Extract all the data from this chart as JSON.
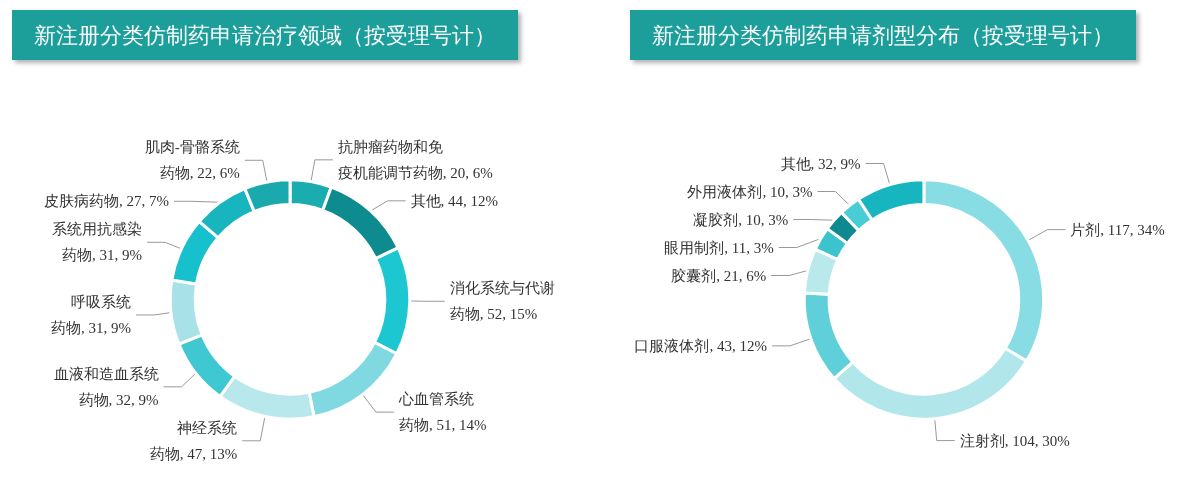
{
  "chart_data": [
    {
      "type": "donut",
      "title": "新注册分类仿制药申请治疗领域（按受理号计）",
      "categories": [
        "抗肿瘤药物和免疫机能调节药物",
        "其他",
        "消化系统与代谢药物",
        "心血管系统药物",
        "神经系统药物",
        "血液和造血系统药物",
        "呼吸系统药物",
        "系统用抗感染药物",
        "皮肤病药物",
        "肌肉-骨骼系统药物"
      ],
      "values": [
        20,
        44,
        52,
        51,
        47,
        32,
        31,
        31,
        27,
        22
      ],
      "value_labels": [
        "20, 6%",
        "44, 12%",
        "52, 15%",
        "51, 14%",
        "47, 13%",
        "32, 9%",
        "31, 9%",
        "31, 9%",
        "27, 7%",
        "22, 6%"
      ],
      "colors": [
        "#19adb0",
        "#0e8b8f",
        "#1cc7d1",
        "#80d9e1",
        "#b8e8eb",
        "#3fc8d2",
        "#a8e2e8",
        "#16c0cc",
        "#18b5bf",
        "#1aa9ad"
      ],
      "legend": false
    },
    {
      "type": "donut",
      "title": "新注册分类仿制药申请剂型分布（按受理号计）",
      "categories": [
        "片剂",
        "注射剂",
        "口服液体剂",
        "胶囊剂",
        "眼用制剂",
        "凝胶剂",
        "外用液体剂",
        "其他"
      ],
      "values": [
        117,
        104,
        43,
        21,
        11,
        10,
        10,
        32
      ],
      "value_labels": [
        "117, 34%",
        "104, 30%",
        "43, 12%",
        "21, 6%",
        "11, 3%",
        "10, 3%",
        "10, 3%",
        "32, 9%"
      ],
      "colors": [
        "#88dce3",
        "#b1e6ea",
        "#5fd0da",
        "#bae9ec",
        "#3cc4ce",
        "#0e8a8e",
        "#48cdd6",
        "#16b5bf"
      ],
      "legend": false
    }
  ]
}
